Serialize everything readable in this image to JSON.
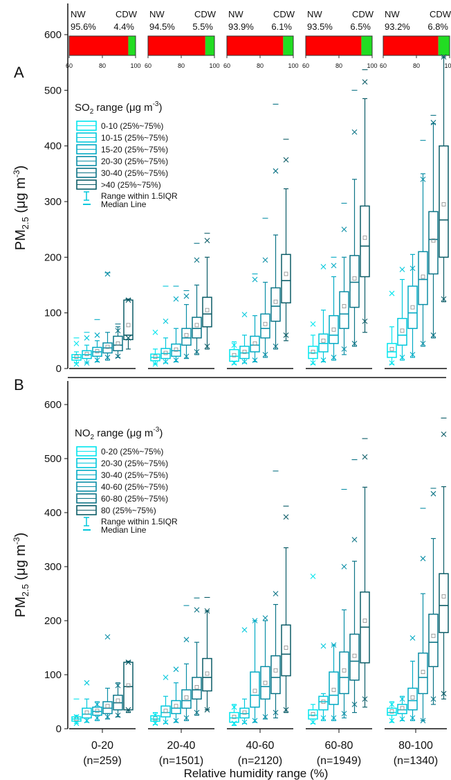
{
  "chart_data": [
    {
      "type": "bar",
      "panel": "inset",
      "stacked": true,
      "orientation": "horizontal",
      "groups": [
        {
          "NW": 95.6,
          "CDW": 4.4,
          "NW_label": "NW",
          "CDW_label": "CDW",
          "NW_text": "95.6%",
          "CDW_text": "4.4%"
        },
        {
          "NW": 94.5,
          "CDW": 5.5,
          "NW_label": "NW",
          "CDW_label": "CDW",
          "NW_text": "94.5%",
          "CDW_text": "5.5%"
        },
        {
          "NW": 93.9,
          "CDW": 6.1,
          "NW_label": "NW",
          "CDW_label": "CDW",
          "NW_text": "93.9%",
          "CDW_text": "6.1%"
        },
        {
          "NW": 93.5,
          "CDW": 6.5,
          "NW_label": "NW",
          "CDW_label": "CDW",
          "NW_text": "93.5%",
          "CDW_text": "6.5%"
        },
        {
          "NW": 93.2,
          "CDW": 6.8,
          "NW_label": "NW",
          "CDW_label": "CDW",
          "NW_text": "93.2%",
          "CDW_text": "6.8%"
        }
      ],
      "xlim": [
        60,
        100
      ],
      "ticks": [
        "60",
        "80",
        "100"
      ],
      "colors": {
        "NW": "#ff0000",
        "CDW": "#22dd22"
      }
    },
    {
      "type": "box",
      "panel_label": "A",
      "ylabel_main": "PM",
      "ylabel_sub": "2.5",
      "ylabel_unit": " (μg m",
      "ylabel_exp": "-3",
      "ylabel_close": ")",
      "ylim": [
        0,
        650
      ],
      "yticks": [
        0,
        100,
        200,
        300,
        400,
        500,
        600
      ],
      "legend_title_main": "SO",
      "legend_title_sub": "2",
      "legend_title_rest": " range (μg m",
      "legend_title_exp": "-3",
      "legend_title_close": ")",
      "series": [
        {
          "name": "0-10 (25%~75%)",
          "color": "#00e5ee"
        },
        {
          "name": "10-15 (25%~75%)",
          "color": "#00c8dc"
        },
        {
          "name": "15-20 (25%~75%)",
          "color": "#00aac4"
        },
        {
          "name": "20-30 (25%~75%)",
          "color": "#0a8ea6"
        },
        {
          "name": "30-40 (25%~75%)",
          "color": "#0b7385"
        },
        {
          "name": ">40 (25%~75%)",
          "color": "#0a5b66"
        }
      ],
      "legend_range": "Range within 1.5IQR",
      "legend_median": "Median Line",
      "boxes": [
        [
          {
            "q1": 15,
            "med": 20,
            "q3": 25,
            "mean": 21,
            "wlo": 10,
            "whi": 30,
            "xlo": 8,
            "xhi": 45,
            "plo": null,
            "phi": 55
          },
          {
            "q1": 18,
            "med": 25,
            "q3": 32,
            "mean": 26,
            "wlo": 10,
            "whi": 42,
            "xlo": 10,
            "xhi": 55,
            "plo": null,
            "phi": 65
          },
          {
            "q1": 22,
            "med": 30,
            "q3": 38,
            "mean": 31,
            "wlo": 12,
            "whi": 50,
            "xlo": 15,
            "xhi": 60,
            "plo": null,
            "phi": 88
          },
          {
            "q1": 28,
            "med": 37,
            "q3": 46,
            "mean": 39,
            "wlo": 15,
            "whi": 65,
            "xlo": 20,
            "xhi": 170,
            "plo": null,
            "phi": 172
          },
          {
            "q1": 32,
            "med": 42,
            "q3": 58,
            "mean": 45,
            "wlo": 20,
            "whi": 75,
            "xlo": 22,
            "xhi": 68,
            "plo": null,
            "phi": 80
          },
          {
            "q1": 52,
            "med": 60,
            "q3": 123,
            "mean": 78,
            "wlo": 35,
            "whi": 125,
            "xlo": 55,
            "xhi": 123,
            "plo": null,
            "phi": 125
          }
        ],
        [
          {
            "q1": 14,
            "med": 20,
            "q3": 26,
            "mean": 21,
            "wlo": 8,
            "whi": 35,
            "xlo": 8,
            "xhi": 65,
            "plo": null,
            "phi": null
          },
          {
            "q1": 18,
            "med": 27,
            "q3": 36,
            "mean": 28,
            "wlo": 10,
            "whi": 55,
            "xlo": 12,
            "xhi": 85,
            "plo": null,
            "phi": 148
          },
          {
            "q1": 22,
            "med": 32,
            "q3": 44,
            "mean": 34,
            "wlo": 12,
            "whi": 72,
            "xlo": 15,
            "xhi": 125,
            "plo": null,
            "phi": 148
          },
          {
            "q1": 42,
            "med": 55,
            "q3": 72,
            "mean": 60,
            "wlo": 18,
            "whi": 115,
            "xlo": 22,
            "xhi": 130,
            "plo": null,
            "phi": 140
          },
          {
            "q1": 55,
            "med": 72,
            "q3": 92,
            "mean": 78,
            "wlo": 25,
            "whi": 150,
            "xlo": 30,
            "xhi": 195,
            "plo": null,
            "phi": 225
          },
          {
            "q1": 75,
            "med": 98,
            "q3": 128,
            "mean": 105,
            "wlo": 35,
            "whi": 200,
            "xlo": 40,
            "xhi": 230,
            "plo": null,
            "phi": 243
          }
        ],
        [
          {
            "q1": 13,
            "med": 22,
            "q3": 34,
            "mean": 24,
            "wlo": 8,
            "whi": 48,
            "xlo": 10,
            "xhi": 42,
            "plo": null,
            "phi": null
          },
          {
            "q1": 18,
            "med": 28,
            "q3": 40,
            "mean": 30,
            "wlo": 10,
            "whi": 60,
            "xlo": 12,
            "xhi": 97,
            "plo": null,
            "phi": null
          },
          {
            "q1": 30,
            "med": 42,
            "q3": 58,
            "mean": 45,
            "wlo": 12,
            "whi": 95,
            "xlo": 15,
            "xhi": 160,
            "plo": null,
            "phi": 170
          },
          {
            "q1": 55,
            "med": 72,
            "q3": 98,
            "mean": 80,
            "wlo": 20,
            "whi": 155,
            "xlo": 25,
            "xhi": 195,
            "plo": null,
            "phi": 270
          },
          {
            "q1": 85,
            "med": 112,
            "q3": 145,
            "mean": 120,
            "wlo": 35,
            "whi": 240,
            "xlo": 40,
            "xhi": 355,
            "plo": null,
            "phi": 475
          },
          {
            "q1": 118,
            "med": 158,
            "q3": 205,
            "mean": 170,
            "wlo": 50,
            "whi": 323,
            "xlo": 60,
            "xhi": 375,
            "plo": null,
            "phi": 412
          }
        ],
        [
          {
            "q1": 18,
            "med": 28,
            "q3": 40,
            "mean": 30,
            "wlo": 8,
            "whi": 60,
            "xlo": 10,
            "xhi": 80,
            "plo": null,
            "phi": null
          },
          {
            "q1": 30,
            "med": 45,
            "q3": 62,
            "mean": 50,
            "wlo": 12,
            "whi": 105,
            "xlo": 15,
            "xhi": 183,
            "plo": null,
            "phi": null
          },
          {
            "q1": 45,
            "med": 60,
            "q3": 95,
            "mean": 70,
            "wlo": 15,
            "whi": 165,
            "xlo": 20,
            "xhi": 185,
            "plo": null,
            "phi": 200
          },
          {
            "q1": 72,
            "med": 98,
            "q3": 138,
            "mean": 112,
            "wlo": 25,
            "whi": 200,
            "xlo": 35,
            "xhi": 250,
            "plo": null,
            "phi": 297
          },
          {
            "q1": 110,
            "med": 155,
            "q3": 203,
            "mean": 162,
            "wlo": 40,
            "whi": 340,
            "xlo": 45,
            "xhi": 425,
            "plo": null,
            "phi": 500
          },
          {
            "q1": 165,
            "med": 220,
            "q3": 292,
            "mean": 235,
            "wlo": 65,
            "whi": 485,
            "xlo": 85,
            "xhi": 515,
            "plo": null,
            "phi": 537
          }
        ],
        [
          {
            "q1": 20,
            "med": 30,
            "q3": 45,
            "mean": 35,
            "wlo": 8,
            "whi": 75,
            "xlo": 10,
            "xhi": 135,
            "plo": null,
            "phi": null
          },
          {
            "q1": 42,
            "med": 60,
            "q3": 90,
            "mean": 68,
            "wlo": 15,
            "whi": 160,
            "xlo": 20,
            "xhi": 178,
            "plo": null,
            "phi": null
          },
          {
            "q1": 72,
            "med": 100,
            "q3": 148,
            "mean": 110,
            "wlo": 20,
            "whi": 205,
            "xlo": 25,
            "xhi": 180,
            "plo": null,
            "phi": null
          },
          {
            "q1": 115,
            "med": 160,
            "q3": 210,
            "mean": 165,
            "wlo": 40,
            "whi": 350,
            "xlo": 45,
            "xhi": 340,
            "plo": null,
            "phi": 410
          },
          {
            "q1": 170,
            "med": 232,
            "q3": 282,
            "mean": 230,
            "wlo": 55,
            "whi": 440,
            "xlo": 60,
            "xhi": 442,
            "plo": null,
            "phi": 455
          },
          {
            "q1": 200,
            "med": 267,
            "q3": 400,
            "mean": 295,
            "wlo": 120,
            "whi": 560,
            "xlo": 125,
            "xhi": 560,
            "plo": null,
            "phi": null
          }
        ]
      ]
    },
    {
      "type": "box",
      "panel_label": "B",
      "ylabel_main": "PM",
      "ylabel_sub": "2.5",
      "ylabel_unit": " (μg m",
      "ylabel_exp": "-3",
      "ylabel_close": ")",
      "ylim": [
        0,
        650
      ],
      "yticks": [
        0,
        100,
        200,
        300,
        400,
        500,
        600
      ],
      "legend_title_main": "NO",
      "legend_title_sub": "2",
      "legend_title_rest": " range (μg m",
      "legend_title_exp": "-3",
      "legend_title_close": ")",
      "series": [
        {
          "name": "0-20 (25%~75%)",
          "color": "#00e5ee"
        },
        {
          "name": "20-30 (25%~75%)",
          "color": "#00c8dc"
        },
        {
          "name": "30-40 (25%~75%)",
          "color": "#00aac4"
        },
        {
          "name": "40-60 (25%~75%)",
          "color": "#0a8ea6"
        },
        {
          "name": "60-80 (25%~75%)",
          "color": "#0b7385"
        },
        {
          "name": "80 (25%~75%)",
          "color": "#0a5b66"
        }
      ],
      "legend_range": "Range within 1.5IQR",
      "legend_median": "Median Line",
      "boxes": [
        [
          {
            "q1": 14,
            "med": 18,
            "q3": 22,
            "mean": 18,
            "wlo": 10,
            "whi": 25,
            "xlo": 10,
            "xhi": 22,
            "plo": null,
            "phi": 55
          },
          {
            "q1": 20,
            "med": 27,
            "q3": 38,
            "mean": 30,
            "wlo": 12,
            "whi": 55,
            "xlo": 15,
            "xhi": 85,
            "plo": null,
            "phi": null
          },
          {
            "q1": 25,
            "med": 32,
            "q3": 40,
            "mean": 33,
            "wlo": 15,
            "whi": 50,
            "xlo": 20,
            "xhi": 45,
            "plo": null,
            "phi": null
          },
          {
            "q1": 28,
            "med": 38,
            "q3": 50,
            "mean": 42,
            "wlo": 18,
            "whi": 75,
            "xlo": 22,
            "xhi": 170,
            "plo": null,
            "phi": null
          },
          {
            "q1": 35,
            "med": 48,
            "q3": 62,
            "mean": 52,
            "wlo": 22,
            "whi": 85,
            "xlo": 25,
            "xhi": 80,
            "plo": null,
            "phi": null
          },
          {
            "q1": 35,
            "med": 78,
            "q3": 123,
            "mean": 80,
            "wlo": 30,
            "whi": 125,
            "xlo": 35,
            "xhi": 123,
            "plo": null,
            "phi": null
          }
        ],
        [
          {
            "q1": 14,
            "med": 18,
            "q3": 24,
            "mean": 19,
            "wlo": 8,
            "whi": 30,
            "xlo": 10,
            "xhi": 25,
            "plo": null,
            "phi": null
          },
          {
            "q1": 22,
            "med": 30,
            "q3": 42,
            "mean": 33,
            "wlo": 10,
            "whi": 60,
            "xlo": 12,
            "xhi": 95,
            "plo": null,
            "phi": null
          },
          {
            "q1": 28,
            "med": 38,
            "q3": 52,
            "mean": 42,
            "wlo": 12,
            "whi": 85,
            "xlo": 15,
            "xhi": 110,
            "plo": null,
            "phi": null
          },
          {
            "q1": 38,
            "med": 52,
            "q3": 72,
            "mean": 58,
            "wlo": 15,
            "whi": 120,
            "xlo": 20,
            "xhi": 165,
            "plo": null,
            "phi": 228
          },
          {
            "q1": 55,
            "med": 72,
            "q3": 95,
            "mean": 77,
            "wlo": 25,
            "whi": 160,
            "xlo": 30,
            "xhi": 220,
            "plo": null,
            "phi": 242
          },
          {
            "q1": 70,
            "med": 95,
            "q3": 130,
            "mean": 102,
            "wlo": 35,
            "whi": 218,
            "xlo": 35,
            "xhi": 218,
            "plo": null,
            "phi": 243
          }
        ],
        [
          {
            "q1": 12,
            "med": 20,
            "q3": 30,
            "mean": 22,
            "wlo": 6,
            "whi": 45,
            "xlo": 10,
            "xhi": 40,
            "plo": null,
            "phi": null
          },
          {
            "q1": 20,
            "med": 28,
            "q3": 38,
            "mean": 30,
            "wlo": 10,
            "whi": 55,
            "xlo": 12,
            "xhi": 183,
            "plo": null,
            "phi": null
          },
          {
            "q1": 40,
            "med": 62,
            "q3": 105,
            "mean": 70,
            "wlo": 12,
            "whi": 200,
            "xlo": 15,
            "xhi": 200,
            "plo": null,
            "phi": null
          },
          {
            "q1": 55,
            "med": 78,
            "q3": 115,
            "mean": 85,
            "wlo": 18,
            "whi": 200,
            "xlo": 22,
            "xhi": 205,
            "plo": null,
            "phi": null
          },
          {
            "q1": 65,
            "med": 95,
            "q3": 135,
            "mean": 108,
            "wlo": 20,
            "whi": 230,
            "xlo": 30,
            "xhi": 250,
            "plo": null,
            "phi": 477
          },
          {
            "q1": 98,
            "med": 138,
            "q3": 192,
            "mean": 150,
            "wlo": 30,
            "whi": 335,
            "xlo": 35,
            "xhi": 392,
            "plo": null,
            "phi": 412
          }
        ],
        [
          {
            "q1": 18,
            "med": 25,
            "q3": 35,
            "mean": 27,
            "wlo": 10,
            "whi": 45,
            "xlo": 12,
            "xhi": 282,
            "plo": null,
            "phi": null
          },
          {
            "q1": 35,
            "med": 50,
            "q3": 60,
            "mean": 50,
            "wlo": 15,
            "whi": 65,
            "xlo": 20,
            "xhi": 153,
            "plo": null,
            "phi": null
          },
          {
            "q1": 45,
            "med": 62,
            "q3": 105,
            "mean": 72,
            "wlo": 15,
            "whi": 155,
            "xlo": 20,
            "xhi": 155,
            "plo": null,
            "phi": null
          },
          {
            "q1": 65,
            "med": 95,
            "q3": 142,
            "mean": 108,
            "wlo": 20,
            "whi": 220,
            "xlo": 28,
            "xhi": 300,
            "plo": null,
            "phi": 443
          },
          {
            "q1": 90,
            "med": 125,
            "q3": 175,
            "mean": 135,
            "wlo": 30,
            "whi": 310,
            "xlo": 45,
            "xhi": 350,
            "plo": null,
            "phi": 498
          },
          {
            "q1": 122,
            "med": 188,
            "q3": 253,
            "mean": 200,
            "wlo": 40,
            "whi": 447,
            "xlo": 55,
            "xhi": 503,
            "plo": null,
            "phi": 537
          }
        ],
        [
          {
            "q1": 25,
            "med": 30,
            "q3": 38,
            "mean": 32,
            "wlo": 12,
            "whi": 50,
            "xlo": 15,
            "xhi": 45,
            "plo": null,
            "phi": null
          },
          {
            "q1": 28,
            "med": 35,
            "q3": 45,
            "mean": 38,
            "wlo": 15,
            "whi": 60,
            "xlo": 18,
            "xhi": 55,
            "plo": null,
            "phi": null
          },
          {
            "q1": 35,
            "med": 52,
            "q3": 75,
            "mean": 58,
            "wlo": 15,
            "whi": 125,
            "xlo": 20,
            "xhi": 168,
            "plo": null,
            "phi": null
          },
          {
            "q1": 65,
            "med": 95,
            "q3": 140,
            "mean": 105,
            "wlo": 15,
            "whi": 250,
            "xlo": 15,
            "xhi": 315,
            "plo": null,
            "phi": 408
          },
          {
            "q1": 115,
            "med": 160,
            "q3": 212,
            "mean": 172,
            "wlo": 45,
            "whi": 352,
            "xlo": 55,
            "xhi": 435,
            "plo": null,
            "phi": 445
          },
          {
            "q1": 178,
            "med": 228,
            "q3": 287,
            "mean": 245,
            "wlo": 55,
            "whi": 448,
            "xlo": 65,
            "xhi": 545,
            "plo": null,
            "phi": 575
          }
        ]
      ]
    }
  ],
  "x_groups": [
    {
      "range": "0-20",
      "n": "(n=259)"
    },
    {
      "range": "20-40",
      "n": "(n=1501)"
    },
    {
      "range": "40-60",
      "n": "(n=2120)"
    },
    {
      "range": "60-80",
      "n": "(n=1949)"
    },
    {
      "range": "80-100",
      "n": "(n=1340)"
    }
  ],
  "xlabel": "Relative humidity range (%)"
}
